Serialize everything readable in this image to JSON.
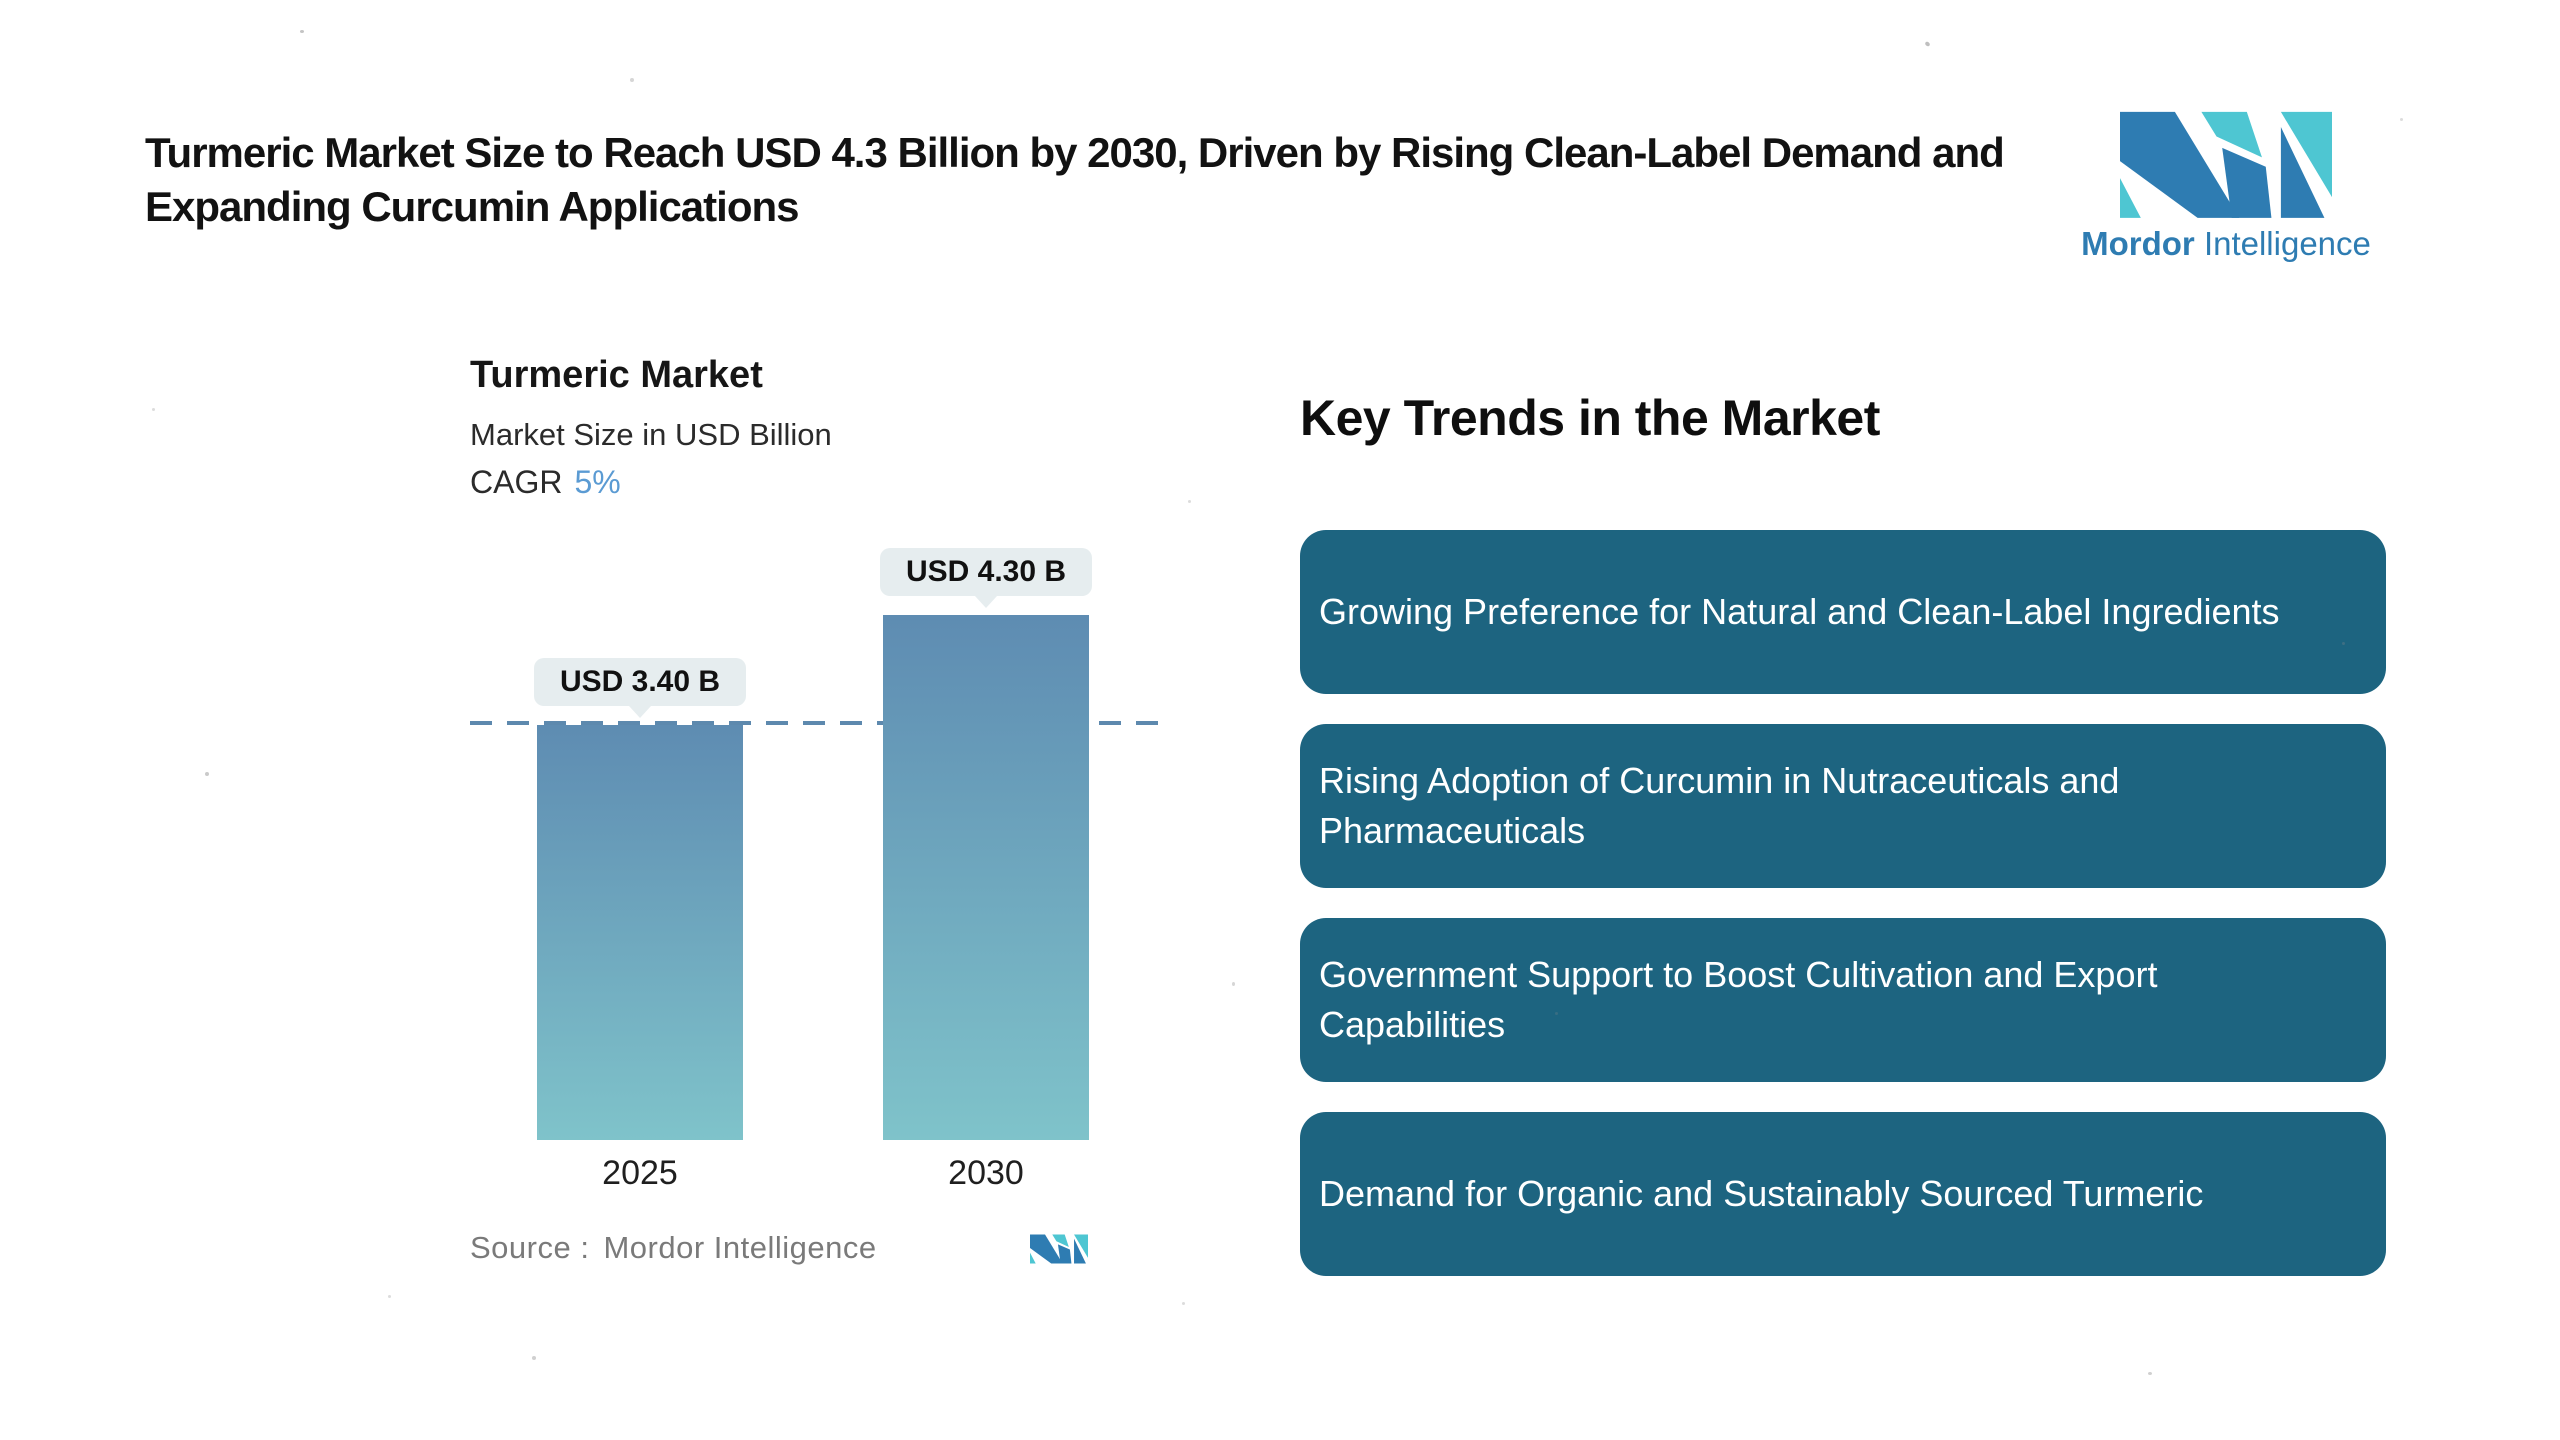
{
  "header": {
    "title": "Turmeric Market Size to Reach USD 4.3 Billion by 2030, Driven by Rising Clean-Label Demand and Expanding Curcumin Applications"
  },
  "logo": {
    "brand_bold": "Mordor",
    "brand_regular": "Intelligence"
  },
  "chart": {
    "title": "Turmeric Market",
    "subtitle": "Market Size in USD Billion",
    "cagr_label": "CAGR",
    "cagr_value": "5%",
    "source_label": "Source :",
    "source_value": "Mordor Intelligence"
  },
  "chart_data": {
    "type": "bar",
    "title": "Turmeric Market",
    "ylabel": "Market Size in USD Billion",
    "cagr": "5%",
    "categories": [
      "2025",
      "2030"
    ],
    "values": [
      3.4,
      4.3
    ],
    "value_labels": [
      "USD 3.40 B",
      "USD 4.30 B"
    ],
    "reference_line": {
      "value": 3.4,
      "style": "dashed"
    },
    "ylim": [
      0,
      4.3
    ],
    "grid": false,
    "legend": false
  },
  "trends": {
    "heading": "Key Trends in the Market",
    "items": [
      "Growing Preference for Natural and Clean-Label Ingredients",
      "Rising Adoption of Curcumin in Nutraceuticals and Pharmaceuticals",
      "Government Support to Boost Cultivation and Export Capabilities",
      "Demand for Organic and Sustainably Sourced Turmeric"
    ]
  },
  "colors": {
    "trend_box": "#1d6480",
    "bar_top": "#5e8cb2",
    "bar_bottom": "#7fc3ca",
    "dash": "#5d89ae",
    "accent_blue": "#5b9bd3",
    "logo_blue": "#2e7cb2",
    "logo_teal": "#4ec6d2",
    "bubble_bg": "#e6edef",
    "source_gray": "#7a7a7a"
  }
}
